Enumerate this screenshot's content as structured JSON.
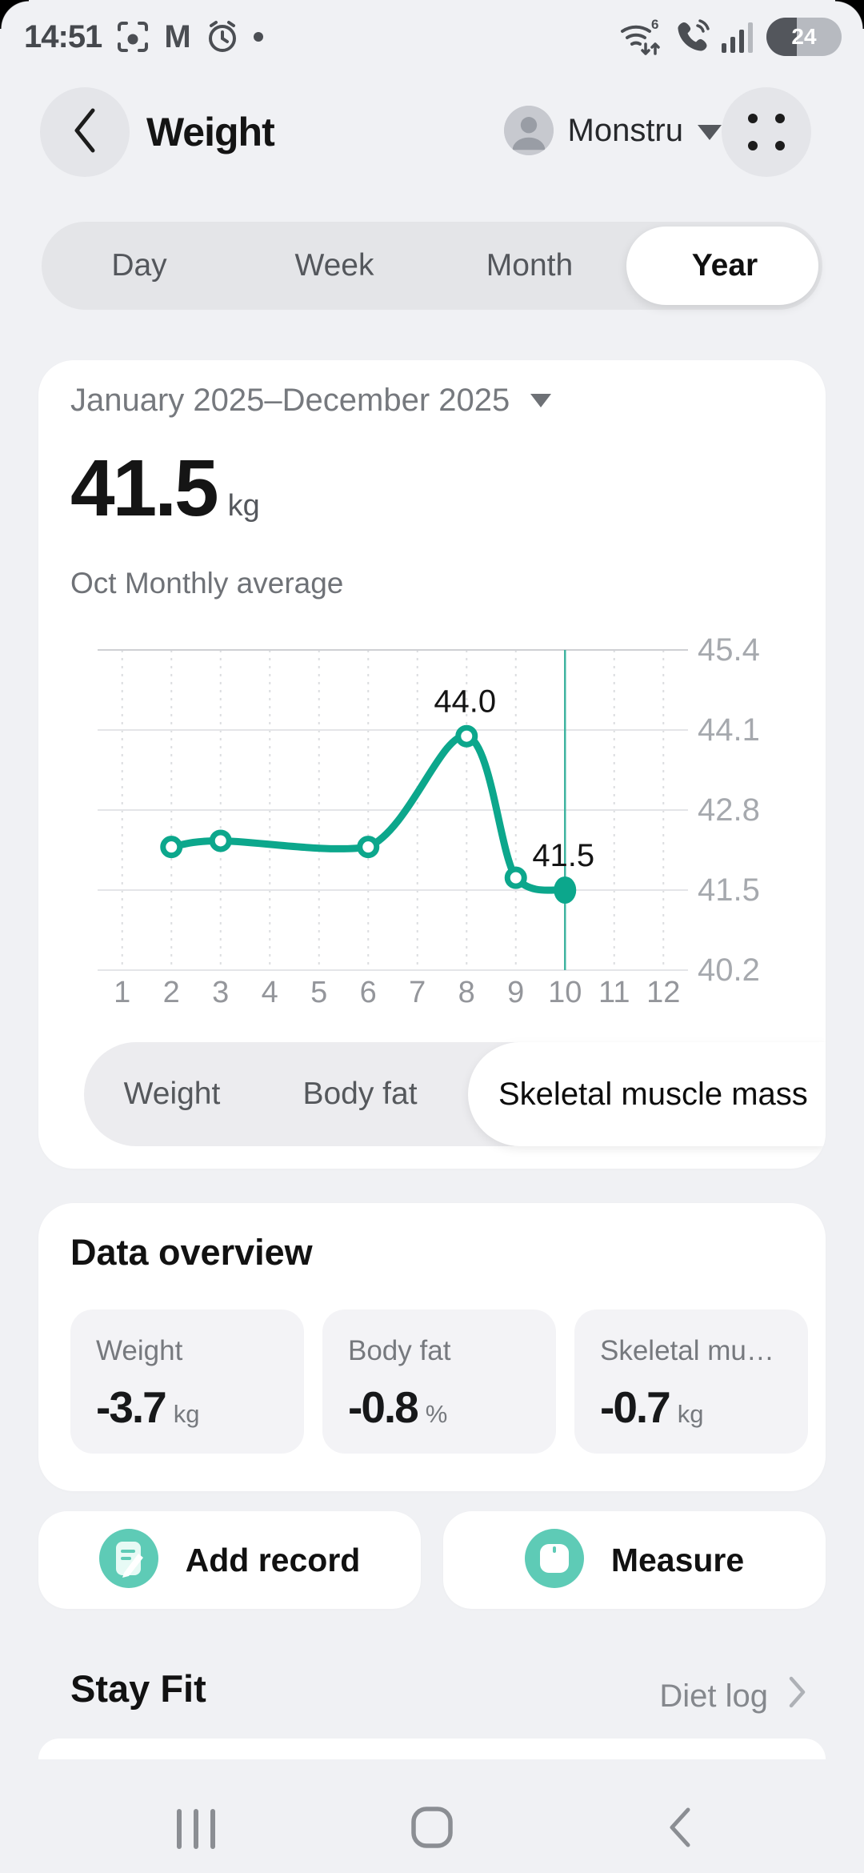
{
  "status_bar": {
    "time": "14:51",
    "battery_percent": "24"
  },
  "header": {
    "title": "Weight",
    "profile_name": "Monstru"
  },
  "period_tabs": {
    "items": [
      {
        "label": "Day"
      },
      {
        "label": "Week"
      },
      {
        "label": "Month"
      },
      {
        "label": "Year"
      }
    ],
    "selected": "Year"
  },
  "summary": {
    "date_range": "January 2025–December 2025",
    "value": "41.5",
    "unit": "kg",
    "caption": "Oct Monthly average"
  },
  "chart_data": {
    "type": "line",
    "x": [
      2,
      3,
      6,
      8,
      9,
      10
    ],
    "values": [
      42.2,
      42.3,
      42.2,
      44.0,
      41.7,
      41.5
    ],
    "unit": "kg",
    "x_ticks": [
      "1",
      "2",
      "3",
      "4",
      "5",
      "6",
      "7",
      "8",
      "9",
      "10",
      "11",
      "12"
    ],
    "y_ticks": [
      45.4,
      44.1,
      42.8,
      41.5,
      40.2
    ],
    "ylim": [
      40.2,
      45.4
    ],
    "xlim": [
      1,
      12
    ],
    "selected_x": 10,
    "point_labels": [
      {
        "x": 8,
        "text": "44.0"
      },
      {
        "x": 10,
        "text": "41.5"
      }
    ],
    "line_color": "#0ca78c",
    "grid": "horizontal solid, vertical dotted",
    "legend": "none",
    "y_axis_side": "right"
  },
  "metric_chips": {
    "items": [
      {
        "label": "Weight"
      },
      {
        "label": "Body fat"
      },
      {
        "label": "Skeletal muscle mass"
      }
    ],
    "selected": "Skeletal muscle mass"
  },
  "data_overview": {
    "title": "Data overview",
    "tiles": [
      {
        "label": "Weight",
        "value": "-3.7",
        "unit": "kg"
      },
      {
        "label": "Body fat",
        "value": "-0.8",
        "unit": "%"
      },
      {
        "label": "Skeletal muscle mass",
        "value": "-0.7",
        "unit": "kg"
      }
    ]
  },
  "actions": {
    "add_record": "Add record",
    "measure": "Measure"
  },
  "stay_fit": {
    "title": "Stay Fit",
    "link_label": "Diet log"
  },
  "colors": {
    "accent_teal": "#0ca78c",
    "icon_teal": "#5ecbb6",
    "page_bg": "#f0f1f4",
    "card_bg": "#ffffff"
  }
}
